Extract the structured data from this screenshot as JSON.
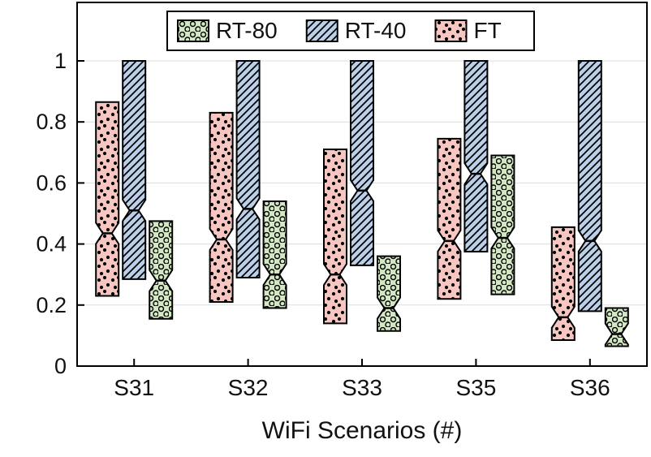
{
  "chart_data": {
    "type": "boxplot",
    "title": "",
    "xlabel": "WiFi Scenarios (#)",
    "ylabel": "",
    "ylim": [
      0,
      1.19
    ],
    "yticks": [
      0,
      0.2,
      0.4,
      0.6,
      0.8,
      1
    ],
    "ytick_labels": [
      "0",
      "0.2",
      "0.4",
      "0.6",
      "0.8",
      "1"
    ],
    "categories": [
      "S31",
      "S32",
      "S33",
      "S35",
      "S36"
    ],
    "grid": "horizontal",
    "notched": true,
    "colors": {
      "ft_fill": "#f7c6c0",
      "rt40_fill": "#bccfe8",
      "rt80_fill": "#d3e7c3",
      "box_stroke": "#000000",
      "grid_line": "#dcdcdc"
    },
    "legend": {
      "position": "top-inside",
      "entries": [
        "RT-80",
        "RT-40",
        "FT"
      ]
    },
    "series": [
      {
        "name": "FT",
        "fill": "#f7c6c0",
        "pattern": "speckle",
        "boxes": [
          {
            "q1": 0.23,
            "median": 0.435,
            "q3": 0.865
          },
          {
            "q1": 0.21,
            "median": 0.415,
            "q3": 0.83
          },
          {
            "q1": 0.14,
            "median": 0.3,
            "q3": 0.71
          },
          {
            "q1": 0.22,
            "median": 0.41,
            "q3": 0.745
          },
          {
            "q1": 0.085,
            "median": 0.16,
            "q3": 0.455
          }
        ]
      },
      {
        "name": "RT-40",
        "fill": "#bccfe8",
        "pattern": "diagonal",
        "boxes": [
          {
            "q1": 0.285,
            "median": 0.51,
            "q3": 1.0
          },
          {
            "q1": 0.29,
            "median": 0.515,
            "q3": 1.0
          },
          {
            "q1": 0.33,
            "median": 0.575,
            "q3": 1.0
          },
          {
            "q1": 0.375,
            "median": 0.63,
            "q3": 1.0
          },
          {
            "q1": 0.18,
            "median": 0.41,
            "q3": 1.0
          }
        ]
      },
      {
        "name": "RT-80",
        "fill": "#d3e7c3",
        "pattern": "circles",
        "boxes": [
          {
            "q1": 0.155,
            "median": 0.28,
            "q3": 0.475
          },
          {
            "q1": 0.19,
            "median": 0.3,
            "q3": 0.54
          },
          {
            "q1": 0.115,
            "median": 0.19,
            "q3": 0.36
          },
          {
            "q1": 0.235,
            "median": 0.42,
            "q3": 0.69
          },
          {
            "q1": 0.065,
            "median": 0.105,
            "q3": 0.19
          }
        ]
      }
    ]
  }
}
